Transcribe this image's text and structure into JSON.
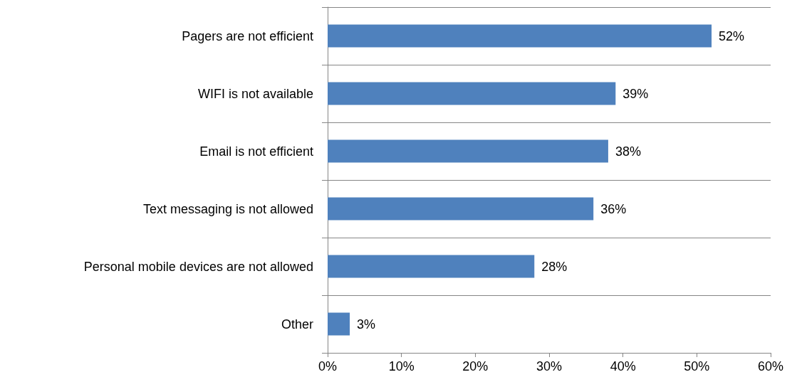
{
  "chart_data": {
    "type": "bar",
    "orientation": "horizontal",
    "categories": [
      "Pagers are not efficient",
      "WIFI is not available",
      "Email is not efficient",
      "Text messaging is not allowed",
      "Personal mobile devices are not allowed",
      "Other"
    ],
    "values": [
      52,
      39,
      38,
      36,
      28,
      3
    ],
    "value_labels": [
      "52%",
      "39%",
      "38%",
      "36%",
      "28%",
      "3%"
    ],
    "color": "#4f81bd",
    "xlim": [
      0,
      60
    ],
    "xticks": [
      {
        "value": 0,
        "label": "0%"
      },
      {
        "value": 10,
        "label": "10%"
      },
      {
        "value": 20,
        "label": "20%"
      },
      {
        "value": 30,
        "label": "30%"
      },
      {
        "value": 40,
        "label": "40%"
      },
      {
        "value": 50,
        "label": "50%"
      },
      {
        "value": 60,
        "label": "60%"
      }
    ],
    "grid": "y"
  }
}
